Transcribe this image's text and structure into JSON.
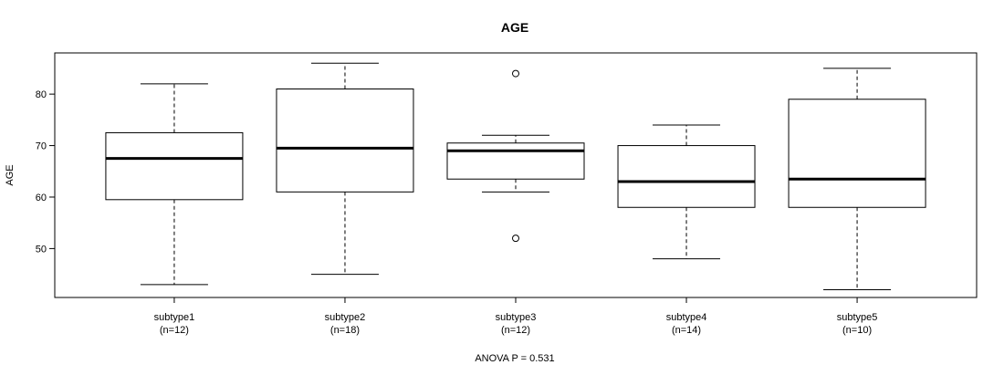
{
  "chart_data": {
    "type": "boxplot",
    "title": "AGE",
    "ylabel": "AGE",
    "xlabel": "ANOVA P = 0.531",
    "ylim": [
      40.5,
      88.0
    ],
    "yticks": [
      50,
      60,
      70,
      80
    ],
    "groups": [
      {
        "name": "subtype1",
        "n_label": "(n=12)",
        "whisker_low": 43,
        "q1": 59.5,
        "median": 67.5,
        "q3": 72.5,
        "whisker_high": 82,
        "outliers": []
      },
      {
        "name": "subtype2",
        "n_label": "(n=18)",
        "whisker_low": 45,
        "q1": 61,
        "median": 69.5,
        "q3": 81,
        "whisker_high": 86,
        "outliers": []
      },
      {
        "name": "subtype3",
        "n_label": "(n=12)",
        "whisker_low": 61,
        "q1": 63.5,
        "median": 69,
        "q3": 70.5,
        "whisker_high": 72,
        "outliers": [
          84,
          52
        ]
      },
      {
        "name": "subtype4",
        "n_label": "(n=14)",
        "whisker_low": 48,
        "q1": 58,
        "median": 63,
        "q3": 70,
        "whisker_high": 74,
        "outliers": []
      },
      {
        "name": "subtype5",
        "n_label": "(n=10)",
        "whisker_low": 42,
        "q1": 58,
        "median": 63.5,
        "q3": 79,
        "whisker_high": 85,
        "outliers": []
      }
    ]
  }
}
